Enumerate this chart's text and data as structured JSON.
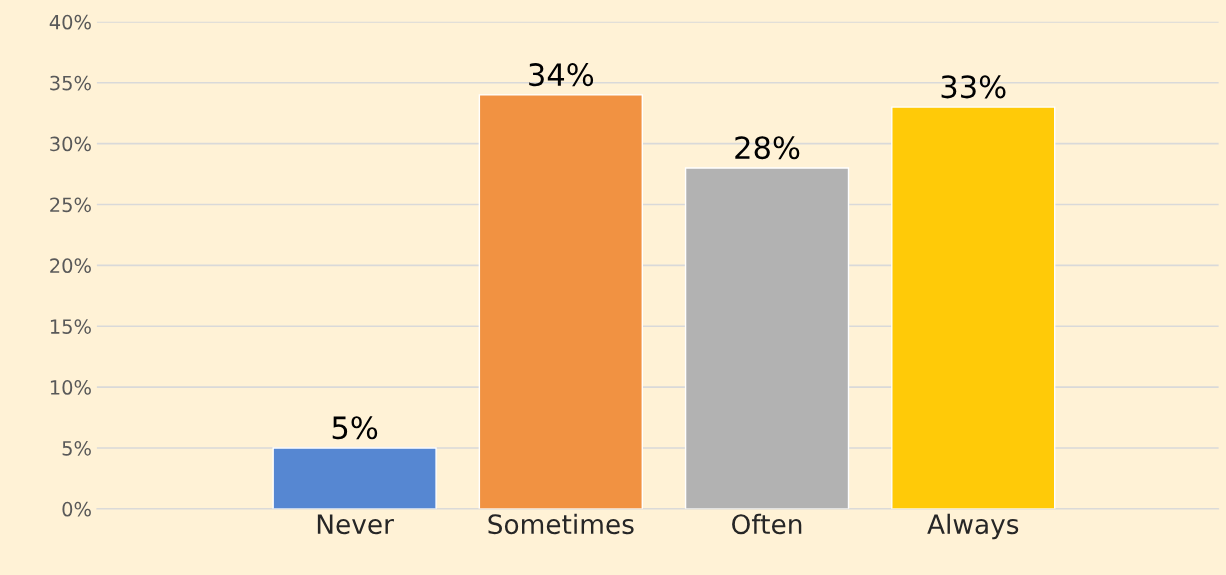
{
  "chart_data": {
    "type": "bar",
    "categories": [
      "Never",
      "Sometimes",
      "Often",
      "Always"
    ],
    "values": [
      5,
      34,
      28,
      33
    ],
    "colors": [
      "#5687d2",
      "#f19242",
      "#b2b2b2",
      "#ffca08"
    ],
    "value_labels": [
      "5%",
      "34%",
      "28%",
      "33%"
    ],
    "ylim": [
      0,
      40
    ],
    "yticks": [
      {
        "value": 0,
        "label": "0%"
      },
      {
        "value": 5,
        "label": "5%"
      },
      {
        "value": 10,
        "label": "10%"
      },
      {
        "value": 15,
        "label": "15%"
      },
      {
        "value": 20,
        "label": "20%"
      },
      {
        "value": 25,
        "label": "25%"
      },
      {
        "value": 30,
        "label": "30%"
      },
      {
        "value": 35,
        "label": "35%"
      },
      {
        "value": 40,
        "label": "40%"
      }
    ],
    "grid": "y"
  }
}
